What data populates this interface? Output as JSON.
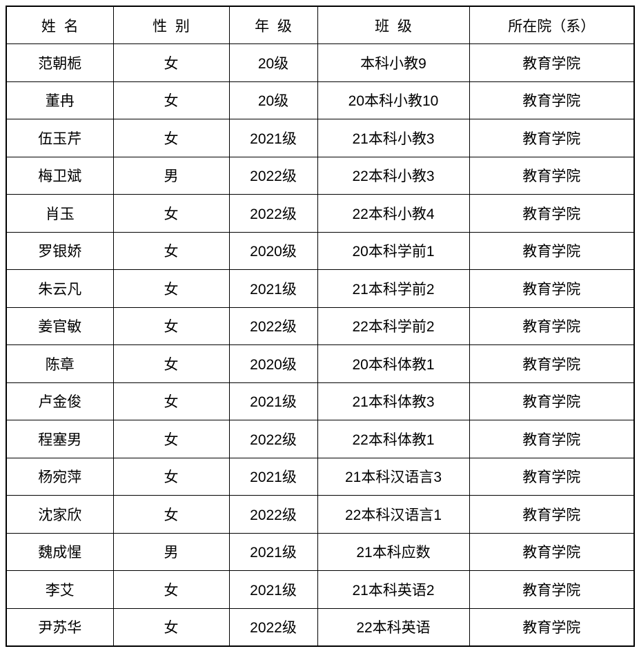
{
  "colors": {
    "background": "#ffffff",
    "border": "#000000",
    "text": "#000000"
  },
  "table": {
    "column_names": [
      "name",
      "gender",
      "grade",
      "class",
      "department"
    ],
    "headers": [
      "姓  名",
      "性  别",
      "年  级",
      "班  级",
      "所在院（系）"
    ],
    "rows": [
      [
        "范朝栀",
        "女",
        "20级",
        "本科小教9",
        "教育学院"
      ],
      [
        "董冉",
        "女",
        "20级",
        "20本科小教10",
        "教育学院"
      ],
      [
        "伍玉芹",
        "女",
        "2021级",
        "21本科小教3",
        "教育学院"
      ],
      [
        "梅卫斌",
        "男",
        "2022级",
        "22本科小教3",
        "教育学院"
      ],
      [
        "肖玉",
        "女",
        "2022级",
        "22本科小教4",
        "教育学院"
      ],
      [
        "罗银娇",
        "女",
        "2020级",
        "20本科学前1",
        "教育学院"
      ],
      [
        "朱云凡",
        "女",
        "2021级",
        "21本科学前2",
        "教育学院"
      ],
      [
        "姜官敏",
        "女",
        "2022级",
        "22本科学前2",
        "教育学院"
      ],
      [
        "陈章",
        "女",
        "2020级",
        "20本科体教1",
        "教育学院"
      ],
      [
        "卢金俊",
        "女",
        "2021级",
        "21本科体教3",
        "教育学院"
      ],
      [
        "程塞男",
        "女",
        "2022级",
        "22本科体教1",
        "教育学院"
      ],
      [
        "杨宛萍",
        "女",
        "2021级",
        "21本科汉语言3",
        "教育学院"
      ],
      [
        "沈家欣",
        "女",
        "2022级",
        "22本科汉语言1",
        "教育学院"
      ],
      [
        "魏成惺",
        "男",
        "2021级",
        "21本科应数",
        "教育学院"
      ],
      [
        "李艾",
        "女",
        "2021级",
        "21本科英语2",
        "教育学院"
      ],
      [
        "尹苏华",
        "女",
        "2022级",
        "22本科英语",
        "教育学院"
      ]
    ]
  }
}
